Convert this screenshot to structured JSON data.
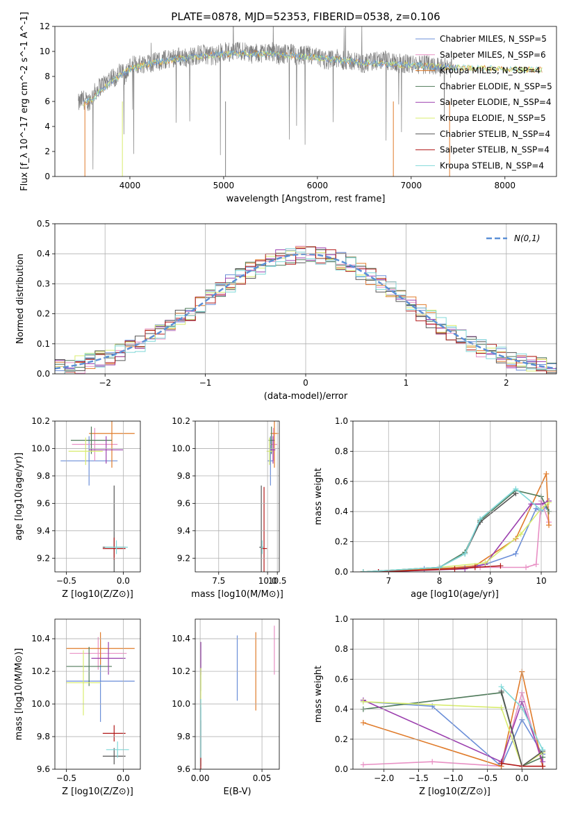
{
  "figure_title": "PLATE=0878, MJD=52353, FIBERID=0538, z=0.106",
  "series_colors": [
    "#6a8ed8",
    "#e88fc4",
    "#e07b2a",
    "#4f7a5a",
    "#9b3fae",
    "#d8ec6e",
    "#555555",
    "#b01818",
    "#7fd8d8"
  ],
  "chart_data": [
    {
      "id": "spectrum",
      "type": "line",
      "xlabel": "wavelength [Angstrom, rest frame]",
      "ylabel": "Flux [f_λ 10^-17 erg cm^-2 s^-1 A^-1]",
      "xlim": [
        3200,
        8550
      ],
      "ylim": [
        0,
        12
      ],
      "xticks": [
        4000,
        5000,
        6000,
        7000,
        8000
      ],
      "yticks": [
        0,
        2,
        4,
        6,
        8,
        10,
        12
      ],
      "data_color": "#808080",
      "legend_placement": "right",
      "legend": [
        "Chabrier MILES, N_SSP=5",
        "Salpeter MILES, N_SSP=6",
        "Kroupa MILES, N_SSP=4",
        "Chabrier ELODIE, N_SSP=5",
        "Salpeter ELODIE, N_SSP=4",
        "Kroupa ELODIE, N_SSP=5",
        "Chabrier STELIB, N_SSP=4",
        "Salpeter STELIB, N_SSP=4",
        "Kroupa STELIB, N_SSP=4"
      ],
      "data_points": {
        "x": [
          3450,
          3500,
          3550,
          3600,
          3650,
          3700,
          3750,
          3800,
          3850,
          3900,
          3950,
          4000,
          4100,
          4200,
          4300,
          4400,
          4500,
          4600,
          4700,
          4800,
          4900,
          5000,
          5100,
          5200,
          5300,
          5400,
          5500,
          5600,
          5700,
          5800,
          5900,
          6000,
          6100,
          6200,
          6300,
          6400,
          6500,
          6600,
          6700,
          6800,
          6900,
          7000,
          7100,
          7200,
          7300,
          7400
        ],
        "y": [
          5.8,
          6.2,
          5.9,
          6.4,
          7.0,
          7.3,
          7.6,
          8.0,
          7.9,
          8.4,
          8.1,
          8.8,
          9.0,
          9.1,
          9.2,
          9.4,
          9.6,
          9.5,
          9.7,
          9.8,
          9.6,
          10.0,
          9.9,
          10.1,
          9.8,
          9.9,
          10.0,
          9.7,
          9.9,
          9.6,
          9.7,
          9.5,
          9.3,
          9.4,
          9.3,
          9.2,
          9.0,
          9.2,
          9.3,
          9.1,
          9.0,
          9.0,
          8.9,
          9.0,
          8.8,
          8.7
        ]
      },
      "model_continuum": {
        "x": [
          3450,
          3600,
          3800,
          4000,
          4200,
          4500,
          5000,
          5500,
          6000,
          6500,
          7000,
          7500,
          8000,
          8500
        ],
        "y": [
          5.6,
          6.2,
          7.6,
          8.6,
          9.0,
          9.4,
          9.8,
          9.8,
          9.5,
          9.1,
          8.9,
          8.7,
          8.6,
          8.5
        ]
      }
    },
    {
      "id": "residual_histogram",
      "type": "line",
      "xlabel": "(data-model)/error",
      "ylabel": "Normed distribution",
      "xlim": [
        -2.5,
        2.5
      ],
      "ylim": [
        0,
        0.5
      ],
      "xticks": [
        -2,
        -1,
        0,
        1,
        2
      ],
      "yticks": [
        0.0,
        0.1,
        0.2,
        0.3,
        0.4,
        0.5
      ],
      "legend": [
        "N(0,1)"
      ],
      "legend_placement": "upper right",
      "gaussian": {
        "mean": 0,
        "sigma": 1
      }
    },
    {
      "id": "age_vs_Z",
      "type": "scatter",
      "xlabel": "Z [log10(Z/Z⊙)]",
      "ylabel": "age [log10(age/yr)]",
      "xlim": [
        -0.6,
        0.15
      ],
      "ylim": [
        9.1,
        10.2
      ],
      "xticks": [
        -0.5,
        0.0
      ],
      "yticks": [
        9.2,
        9.4,
        9.6,
        9.8,
        10.0,
        10.2
      ],
      "points": [
        {
          "x": -0.3,
          "y": 9.91,
          "xerr": 0.25,
          "yerr": 0.18
        },
        {
          "x": -0.25,
          "y": 10.03,
          "xerr": 0.2,
          "yerr": 0.12
        },
        {
          "x": -0.1,
          "y": 10.11,
          "xerr": 0.2,
          "yerr": 0.25
        },
        {
          "x": -0.28,
          "y": 10.06,
          "xerr": 0.18,
          "yerr": 0.1
        },
        {
          "x": -0.15,
          "y": 9.99,
          "xerr": 0.15,
          "yerr": 0.1
        },
        {
          "x": -0.33,
          "y": 9.98,
          "xerr": 0.15,
          "yerr": 0.1
        },
        {
          "x": -0.08,
          "y": 9.28,
          "xerr": 0.1,
          "yerr": 0.45
        },
        {
          "x": -0.08,
          "y": 9.27,
          "xerr": 0.1,
          "yerr": 0.08
        },
        {
          "x": -0.06,
          "y": 9.28,
          "xerr": 0.1,
          "yerr": 0.05
        }
      ]
    },
    {
      "id": "age_vs_mass",
      "type": "scatter",
      "xlabel": "mass [log10(M/M⊙)]",
      "ylabel": "",
      "xlim": [
        6.3,
        10.6
      ],
      "ylim": [
        9.1,
        10.2
      ],
      "xticks": [
        7.5,
        10.0,
        10.5
      ],
      "yticks": [
        9.2,
        9.4,
        9.6,
        9.8,
        10.0,
        10.2
      ],
      "points": [
        {
          "x": 10.15,
          "y": 9.91,
          "xerr": 0.15,
          "yerr": 0.18
        },
        {
          "x": 10.3,
          "y": 10.03,
          "xerr": 0.2,
          "yerr": 0.12
        },
        {
          "x": 10.35,
          "y": 10.11,
          "xerr": 0.2,
          "yerr": 0.25
        },
        {
          "x": 10.2,
          "y": 10.06,
          "xerr": 0.15,
          "yerr": 0.1
        },
        {
          "x": 10.28,
          "y": 9.99,
          "xerr": 0.12,
          "yerr": 0.1
        },
        {
          "x": 10.1,
          "y": 9.98,
          "xerr": 0.15,
          "yerr": 0.1
        },
        {
          "x": 9.68,
          "y": 9.28,
          "xerr": 0.1,
          "yerr": 0.45
        },
        {
          "x": 9.82,
          "y": 9.27,
          "xerr": 0.15,
          "yerr": 0.45
        },
        {
          "x": 9.72,
          "y": 9.28,
          "xerr": 0.05,
          "yerr": 0.05
        }
      ]
    },
    {
      "id": "mass_weight_vs_age",
      "type": "line",
      "xlabel": "age [log10(age/yr)]",
      "ylabel": "mass weight",
      "xlim": [
        6.3,
        10.3
      ],
      "ylim": [
        0,
        1.0
      ],
      "xticks": [
        7,
        8,
        9,
        10
      ],
      "yticks": [
        0.0,
        0.2,
        0.4,
        0.6,
        0.8,
        1.0
      ],
      "series": [
        {
          "x": [
            6.5,
            7.7,
            8.5,
            8.9,
            9.5,
            9.9,
            10.0,
            10.1
          ],
          "y": [
            0.0,
            0.02,
            0.03,
            0.05,
            0.12,
            0.42,
            0.4,
            0.43
          ]
        },
        {
          "x": [
            6.8,
            8.3,
            8.8,
            9.7,
            9.9,
            10.0,
            10.15
          ],
          "y": [
            0.0,
            0.02,
            0.03,
            0.03,
            0.05,
            0.47,
            0.33
          ]
        },
        {
          "x": [
            6.5,
            8.0,
            8.7,
            9.5,
            10.1,
            10.15
          ],
          "y": [
            0.0,
            0.02,
            0.04,
            0.22,
            0.65,
            0.31
          ]
        },
        {
          "x": [
            6.5,
            8.0,
            8.5,
            8.8,
            9.5,
            10.0,
            10.15
          ],
          "y": [
            0.0,
            0.03,
            0.13,
            0.34,
            0.54,
            0.5,
            0.4
          ]
        },
        {
          "x": [
            6.8,
            8.5,
            8.9,
            9.8,
            10.0,
            10.15
          ],
          "y": [
            0.0,
            0.02,
            0.05,
            0.45,
            0.45,
            0.47
          ]
        },
        {
          "x": [
            6.5,
            8.0,
            8.9,
            9.6,
            10.0,
            10.15
          ],
          "y": [
            0.0,
            0.03,
            0.06,
            0.25,
            0.42,
            0.46
          ]
        },
        {
          "x": [
            6.5,
            8.0,
            8.5,
            8.8,
            9.5
          ],
          "y": [
            0.0,
            0.03,
            0.12,
            0.33,
            0.52
          ]
        },
        {
          "x": [
            6.8,
            8.3,
            8.7,
            9.2
          ],
          "y": [
            0.0,
            0.02,
            0.03,
            0.04
          ]
        },
        {
          "x": [
            6.5,
            8.0,
            8.5,
            8.8,
            9.5,
            10.0
          ],
          "y": [
            0.0,
            0.03,
            0.12,
            0.35,
            0.55,
            0.41
          ]
        }
      ]
    },
    {
      "id": "mass_vs_Z",
      "type": "scatter",
      "xlabel": "Z [log10(Z/Z⊙)]",
      "ylabel": "mass [log10(M/M⊙)]",
      "xlim": [
        -0.6,
        0.15
      ],
      "ylim": [
        9.6,
        10.52
      ],
      "xticks": [
        -0.5,
        0.0
      ],
      "yticks": [
        9.6,
        9.8,
        10.0,
        10.2,
        10.4
      ],
      "points": [
        {
          "x": -0.2,
          "y": 10.14,
          "xerr": 0.3,
          "yerr": 0.25
        },
        {
          "x": -0.22,
          "y": 10.31,
          "xerr": 0.25,
          "yerr": 0.1
        },
        {
          "x": -0.2,
          "y": 10.34,
          "xerr": 0.3,
          "yerr": 0.1
        },
        {
          "x": -0.3,
          "y": 10.23,
          "xerr": 0.2,
          "yerr": 0.12
        },
        {
          "x": -0.13,
          "y": 10.28,
          "xerr": 0.15,
          "yerr": 0.1
        },
        {
          "x": -0.35,
          "y": 10.13,
          "xerr": 0.15,
          "yerr": 0.2
        },
        {
          "x": -0.08,
          "y": 9.68,
          "xerr": 0.1,
          "yerr": 0.05
        },
        {
          "x": -0.08,
          "y": 9.82,
          "xerr": 0.1,
          "yerr": 0.05
        },
        {
          "x": -0.05,
          "y": 9.72,
          "xerr": 0.1,
          "yerr": 0.05
        }
      ]
    },
    {
      "id": "mass_vs_EBV",
      "type": "scatter",
      "xlabel": "E(B-V)",
      "ylabel": "",
      "xlim": [
        -0.004,
        0.064
      ],
      "ylim": [
        9.6,
        10.52
      ],
      "xticks": [
        0.0,
        0.05
      ],
      "yticks": [
        9.6,
        9.8,
        10.0,
        10.2,
        10.4
      ],
      "points": [
        {
          "x": 0.03,
          "y": 10.22,
          "yerr": 0.2
        },
        {
          "x": 0.06,
          "y": 10.33,
          "yerr": 0.15
        },
        {
          "x": 0.045,
          "y": 10.2,
          "yerr": 0.24
        },
        {
          "x": 0.0005,
          "y": 10.23,
          "yerr": 0.15
        },
        {
          "x": 0.0005,
          "y": 10.28,
          "yerr": 0.1
        },
        {
          "x": 0.0005,
          "y": 10.1,
          "yerr": 0.12
        },
        {
          "x": 0.0005,
          "y": 9.8,
          "yerr": 0.18
        },
        {
          "x": 0.0005,
          "y": 9.75,
          "yerr": 0.15
        },
        {
          "x": 0.0005,
          "y": 9.85,
          "yerr": 0.18
        }
      ]
    },
    {
      "id": "mass_weight_vs_Z",
      "type": "line",
      "xlabel": "Z [log10(Z/Z⊙)]",
      "ylabel": "mass weight",
      "xlim": [
        -2.45,
        0.5
      ],
      "ylim": [
        0,
        1.0
      ],
      "xticks": [
        -2.0,
        -1.5,
        -1.0,
        -0.5,
        0.0
      ],
      "yticks": [
        0.0,
        0.2,
        0.4,
        0.6,
        0.8,
        1.0
      ],
      "series": [
        {
          "x": [
            -2.3,
            -1.3,
            -0.3,
            0.0,
            0.3
          ],
          "y": [
            0.45,
            0.42,
            0.02,
            0.33,
            0.1
          ]
        },
        {
          "x": [
            -2.3,
            -1.3,
            -0.3,
            0.0,
            0.3
          ],
          "y": [
            0.03,
            0.05,
            0.02,
            0.51,
            0.02
          ]
        },
        {
          "x": [
            -2.3,
            -0.3,
            0.0,
            0.3
          ],
          "y": [
            0.31,
            0.02,
            0.65,
            0.02
          ]
        },
        {
          "x": [
            -2.3,
            -0.3,
            0.0,
            0.3
          ],
          "y": [
            0.4,
            0.51,
            0.02,
            0.08
          ]
        },
        {
          "x": [
            -2.3,
            -0.3,
            0.0,
            0.3
          ],
          "y": [
            0.46,
            0.05,
            0.45,
            0.05
          ]
        },
        {
          "x": [
            -2.3,
            -0.3,
            0.0,
            0.3
          ],
          "y": [
            0.45,
            0.41,
            0.02,
            0.11
          ]
        },
        {
          "x": [
            -0.3,
            0.0,
            0.3
          ],
          "y": [
            0.52,
            0.02,
            0.12
          ]
        },
        {
          "x": [
            -0.3,
            0.0,
            0.3
          ],
          "y": [
            0.04,
            0.02,
            0.02
          ]
        },
        {
          "x": [
            -0.3,
            0.0,
            0.3
          ],
          "y": [
            0.55,
            0.41,
            0.13
          ]
        }
      ]
    }
  ]
}
